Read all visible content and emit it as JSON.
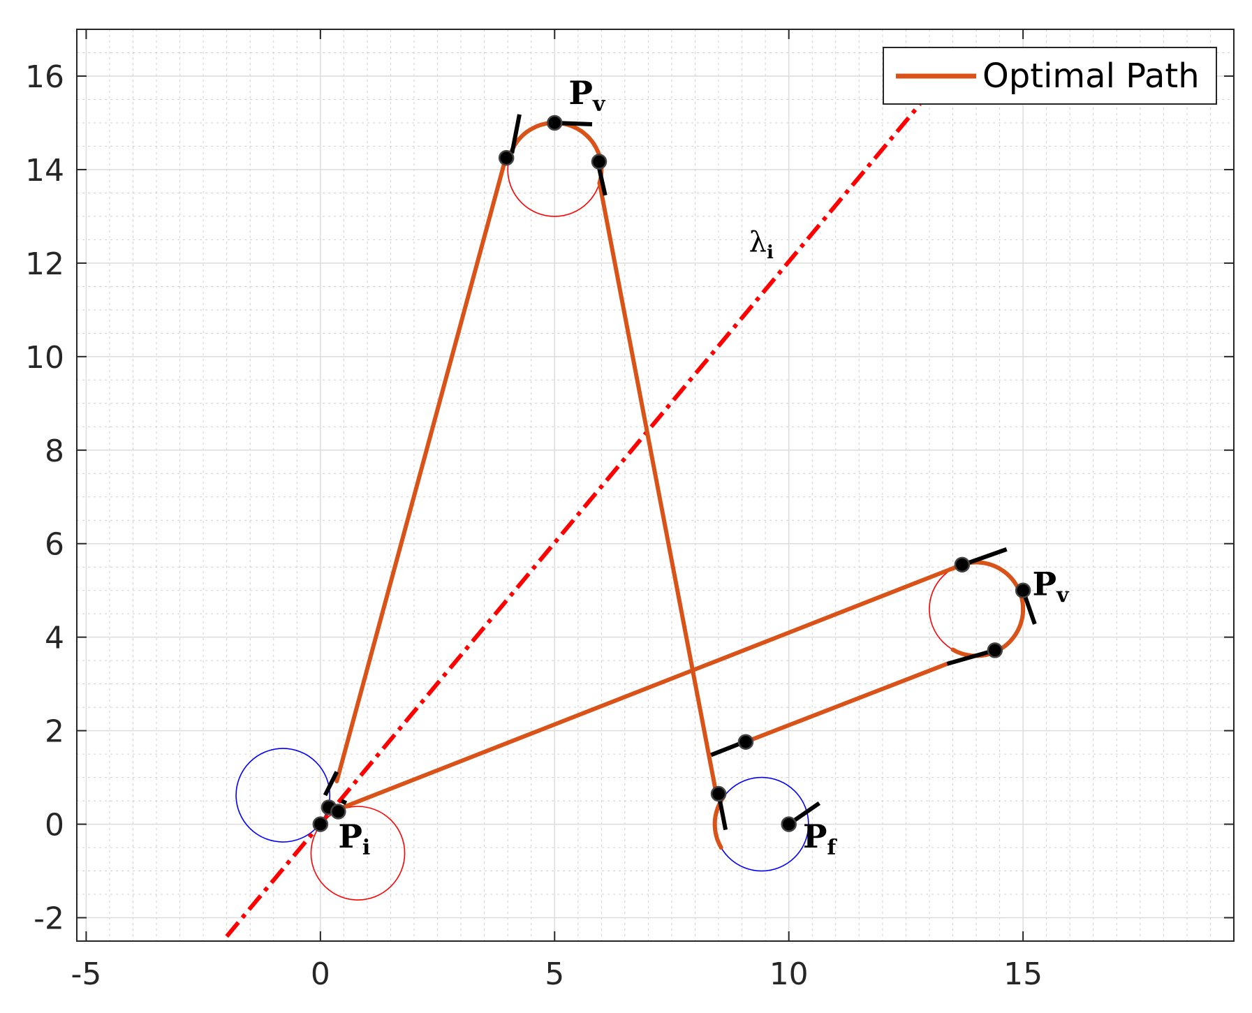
{
  "chart_data": {
    "type": "line",
    "title": "",
    "xlabel": "",
    "ylabel": "",
    "xlim": [
      -5.2,
      19.5
    ],
    "ylim": [
      -2.5,
      17
    ],
    "grid": true,
    "minor_grid": true,
    "legend_position": "top-right",
    "x_ticks": [
      -5,
      0,
      5,
      10,
      15
    ],
    "x_tick_labels": [
      "-5",
      "0",
      "5",
      "10",
      "15"
    ],
    "y_ticks": [
      -2,
      0,
      2,
      4,
      6,
      8,
      10,
      12,
      14,
      16
    ],
    "y_tick_labels": [
      "-2",
      "0",
      "2",
      "4",
      "6",
      "8",
      "10",
      "12",
      "14",
      "16"
    ],
    "colors": {
      "optimal_path": "#D95319",
      "lambda_line": "#FF0000",
      "left_turn_circle": "#0000FF",
      "right_turn_circle": "#FF0000",
      "points": "#000000",
      "grid": "#e6e6e6",
      "axes": "#262626"
    },
    "series": [
      {
        "name": "Optimal Path",
        "color": "#D95319",
        "segments": [
          {
            "kind": "line",
            "from": [
              0.35,
              0.92
            ],
            "to": [
              3.97,
              14.3
            ]
          },
          {
            "kind": "arc",
            "center": [
              5.0,
              14.0
            ],
            "radius": 1.0,
            "from_deg": 162,
            "to_deg": -17
          },
          {
            "kind": "line",
            "from": [
              5.96,
              13.71
            ],
            "to": [
              8.47,
              0.55
            ]
          },
          {
            "kind": "arc",
            "center": [
              9.42,
              0.0
            ],
            "radius": 1.0,
            "from_deg": 145,
            "to_deg": -150,
            "sweep": "ccw"
          },
          {
            "kind": "line",
            "from": [
              9.08,
              1.76
            ],
            "to": [
              13.38,
              3.43
            ]
          },
          {
            "kind": "arc",
            "center": [
              14.0,
              4.6
            ],
            "radius": 1.0,
            "from_deg": -120,
            "to_deg": 120,
            "sweep": "ccw"
          },
          {
            "kind": "line",
            "from": [
              13.7,
              5.55
            ],
            "to": [
              0.38,
              0.32
            ]
          }
        ]
      },
      {
        "name": "lambda_i",
        "color": "#FF0000",
        "style": "dash-dot",
        "x": [
          -2.0,
          12.8
        ],
        "y": [
          -2.4,
          15.4
        ]
      }
    ],
    "turn_circles": [
      {
        "center": [
          -0.8,
          0.62
        ],
        "radius": 1.0,
        "color": "#0000FF"
      },
      {
        "center": [
          0.8,
          -0.62
        ],
        "radius": 1.0,
        "color": "#FF0000"
      },
      {
        "center": [
          5.0,
          14.0
        ],
        "radius": 1.0,
        "color": "#FF0000"
      },
      {
        "center": [
          9.42,
          0.0
        ],
        "radius": 1.0,
        "color": "#0000FF"
      },
      {
        "center": [
          14.0,
          4.6
        ],
        "radius": 1.0,
        "color": "#FF0000"
      }
    ],
    "points": [
      [
        0.0,
        0.0
      ],
      [
        0.18,
        0.36
      ],
      [
        0.38,
        0.27
      ],
      [
        5.0,
        15.0
      ],
      [
        3.97,
        14.25
      ],
      [
        5.95,
        14.17
      ],
      [
        8.5,
        0.65
      ],
      [
        9.08,
        1.76
      ],
      [
        10.0,
        0.0
      ],
      [
        13.7,
        5.55
      ],
      [
        15.0,
        5.0
      ],
      [
        14.4,
        3.72
      ]
    ],
    "heading_ticks": [
      {
        "from": [
          0.1,
          0.62
        ],
        "to": [
          0.35,
          1.12
        ]
      },
      {
        "from": [
          0.45,
          0.5
        ],
        "to": [
          0.55,
          0.45
        ]
      },
      {
        "from": [
          4.25,
          15.18
        ],
        "to": [
          4.09,
          14.35
        ]
      },
      {
        "from": [
          5.0,
          15.0
        ],
        "to": [
          5.8,
          14.97
        ]
      },
      {
        "from": [
          6.08,
          13.45
        ],
        "to": [
          5.93,
          14.12
        ]
      },
      {
        "from": [
          8.34,
          1.48
        ],
        "to": [
          9.05,
          1.76
        ]
      },
      {
        "from": [
          8.5,
          0.65
        ],
        "to": [
          8.65,
          -0.12
        ]
      },
      {
        "from": [
          10.0,
          0.0
        ],
        "to": [
          10.65,
          0.45
        ]
      },
      {
        "from": [
          13.72,
          5.55
        ],
        "to": [
          14.65,
          5.88
        ]
      },
      {
        "from": [
          15.0,
          5.0
        ],
        "to": [
          15.25,
          4.28
        ]
      },
      {
        "from": [
          13.38,
          3.43
        ],
        "to": [
          14.4,
          3.72
        ]
      }
    ],
    "annotations": [
      {
        "base": "P",
        "sub": "v",
        "x": 5.3,
        "y": 15.4
      },
      {
        "base": "P",
        "sub": "v",
        "x": 15.2,
        "y": 4.9
      },
      {
        "base": "P",
        "sub": "i",
        "x": 0.38,
        "y": -0.5
      },
      {
        "base": "P",
        "sub": "f",
        "x": 10.3,
        "y": -0.5
      },
      {
        "base": "λ",
        "sub": "i",
        "x": 9.15,
        "y": 12.25
      }
    ],
    "legend": [
      {
        "label": "Optimal Path",
        "color": "#D95319"
      }
    ]
  }
}
